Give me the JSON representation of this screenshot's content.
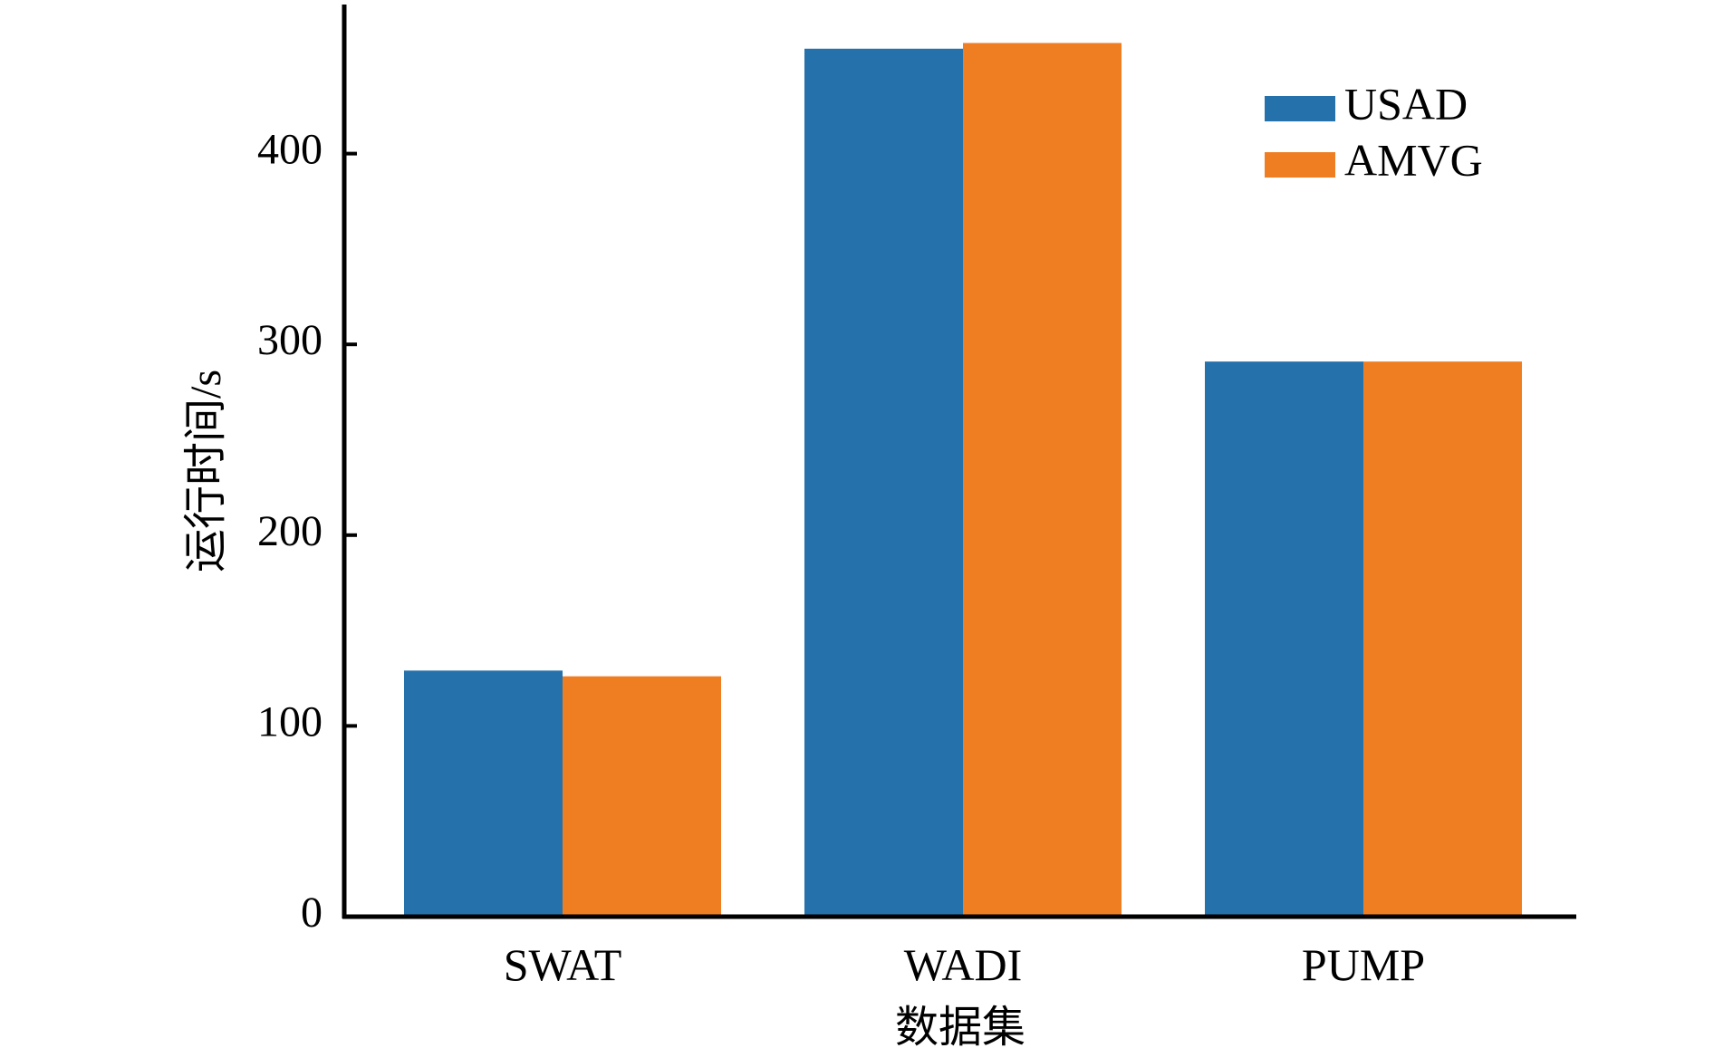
{
  "chart_data": {
    "type": "bar",
    "categories": [
      "SWAT",
      "WADI",
      "PUMP"
    ],
    "series": [
      {
        "name": "USAD",
        "color": "#2571ab",
        "values": [
          129,
          455,
          291
        ]
      },
      {
        "name": "AMVG",
        "color": "#ef7d22",
        "values": [
          126,
          458,
          291
        ]
      }
    ],
    "xlabel": "数据集",
    "ylabel": "运行时间/s",
    "ylim": [
      0,
      480
    ],
    "yticks": [
      "0",
      "100",
      "200",
      "300",
      "400"
    ],
    "grid": false,
    "legend": "top-right"
  }
}
